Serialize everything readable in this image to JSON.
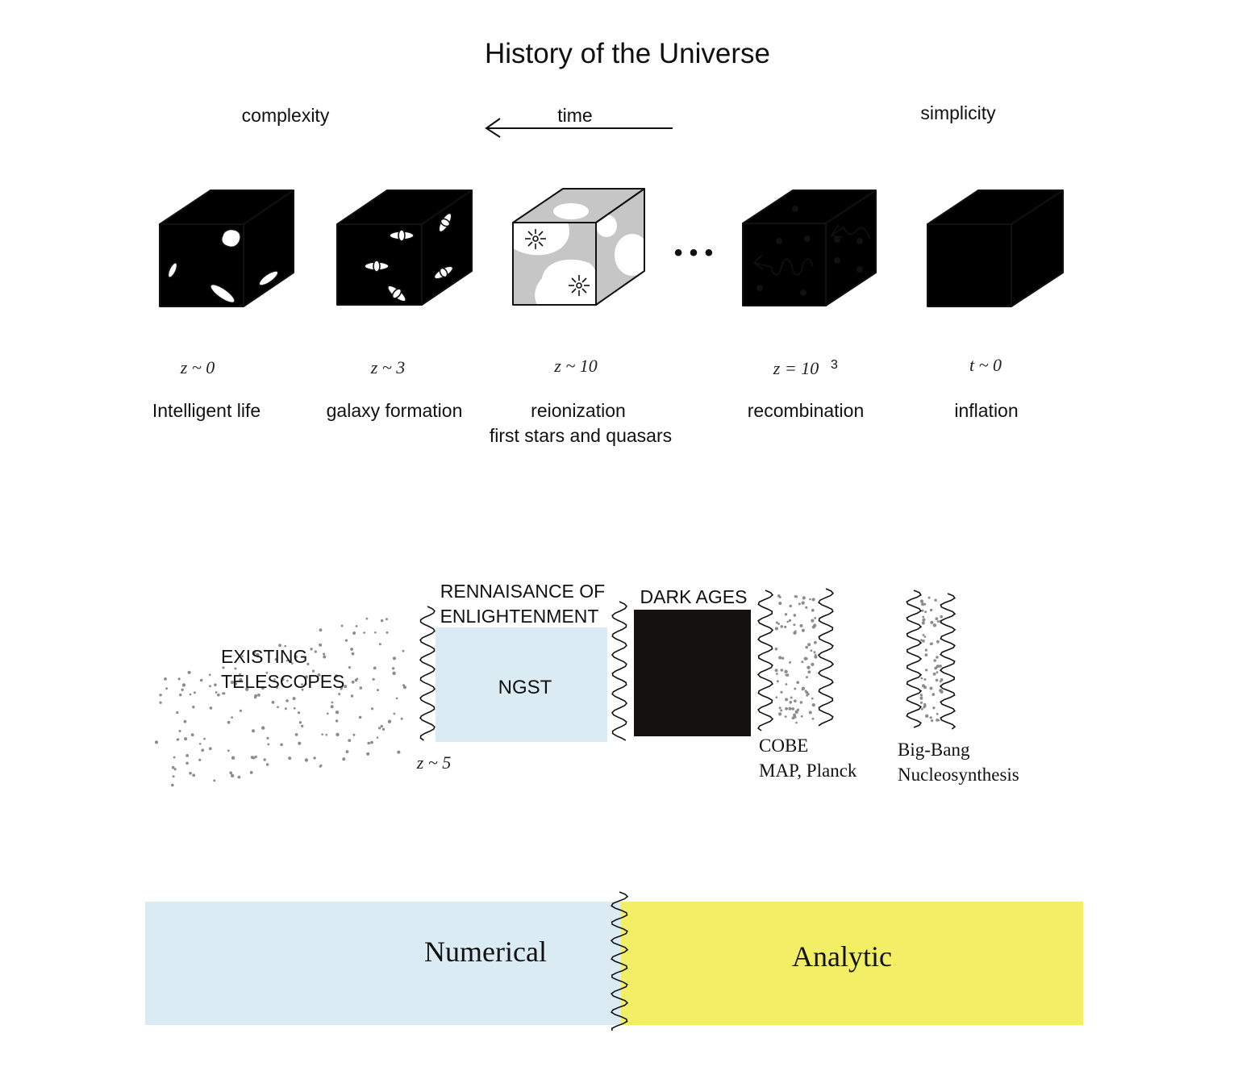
{
  "title": "History of the Universe",
  "axis": {
    "left_label": "complexity",
    "time_label": "time",
    "right_label": "simplicity"
  },
  "ellipsis": "• • •",
  "epochs": [
    {
      "redshift": "z ~ 0",
      "name": "Intelligent life",
      "name2": "",
      "color": "#9dcfe1"
    },
    {
      "redshift": "z ~ 3",
      "name": "galaxy formation",
      "name2": "",
      "color": "#d8ebf4"
    },
    {
      "redshift": "z ~ 10",
      "name": "reionization",
      "name2": "first stars and quasars",
      "color": "#c6c6c6"
    },
    {
      "redshift": "z = 10",
      "redshift_sup": "3",
      "name": "recombination",
      "name2": "",
      "color": "#f1ec40"
    },
    {
      "redshift": "t ~ 0",
      "name": "inflation",
      "name2": "",
      "color": "#d2292b"
    }
  ],
  "observations": {
    "existing_line1": "EXISTING",
    "existing_line2": "TELESCOPES",
    "renaissance_line1": "RENNAISANCE OF",
    "renaissance_line2": "ENLIGHTENMENT",
    "ngst": "NGST",
    "z5": "z ~ 5",
    "dark_ages": "DARK AGES",
    "cobe_line1": "COBE",
    "cobe_line2": "MAP, Planck",
    "bbn_line1": "Big-Bang",
    "bbn_line2": "Nucleosynthesis"
  },
  "methods": {
    "numerical": "Numerical",
    "analytic": "Analytic",
    "numerical_color": "#dbebf4",
    "analytic_color": "#f2ef66"
  }
}
